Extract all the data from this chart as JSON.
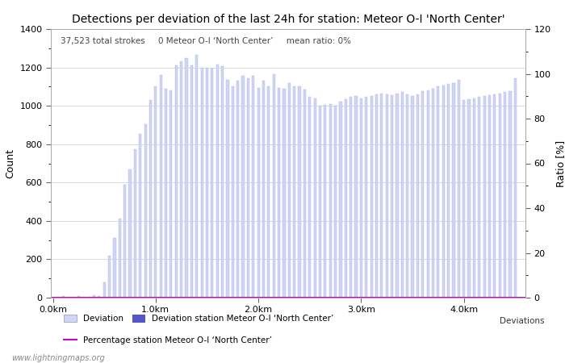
{
  "title": "Detections per deviation of the last 24h for station: Meteor O-I 'North Center'",
  "subtitle_parts": [
    "37,523 total strokes",
    "0 Meteor O-I ‘North Center’",
    "mean ratio: 0%"
  ],
  "ylabel_left": "Count",
  "ylabel_right": "Ratio [%]",
  "ylim_left": [
    0,
    1400
  ],
  "ylim_right": [
    0,
    120
  ],
  "bar_color_light": "#d0d4f5",
  "bar_color_dark": "#5555cc",
  "line_color": "#cc00cc",
  "watermark": "www.lightningmaps.org",
  "legend_suffix": "Deviations",
  "bar_positions": [
    0.05,
    0.1,
    0.15,
    0.2,
    0.25,
    0.3,
    0.35,
    0.4,
    0.45,
    0.5,
    0.55,
    0.6,
    0.65,
    0.7,
    0.75,
    0.8,
    0.85,
    0.9,
    0.95,
    1.0,
    1.05,
    1.1,
    1.15,
    1.2,
    1.25,
    1.3,
    1.35,
    1.4,
    1.45,
    1.5,
    1.55,
    1.6,
    1.65,
    1.7,
    1.75,
    1.8,
    1.85,
    1.9,
    1.95,
    2.0,
    2.05,
    2.1,
    2.15,
    2.2,
    2.25,
    2.3,
    2.35,
    2.4,
    2.45,
    2.5,
    2.55,
    2.6,
    2.65,
    2.7,
    2.75,
    2.8,
    2.85,
    2.9,
    2.95,
    3.0,
    3.05,
    3.1,
    3.15,
    3.2,
    3.25,
    3.3,
    3.35,
    3.4,
    3.45,
    3.5,
    3.55,
    3.6,
    3.65,
    3.7,
    3.75,
    3.8,
    3.85,
    3.9,
    3.95,
    4.0,
    4.05,
    4.1,
    4.15,
    4.2,
    4.25,
    4.3,
    4.35,
    4.4,
    4.45,
    4.5
  ],
  "bar_heights": [
    5,
    8,
    3,
    5,
    8,
    5,
    5,
    12,
    10,
    80,
    220,
    310,
    410,
    590,
    670,
    775,
    855,
    905,
    1030,
    1100,
    1160,
    1090,
    1080,
    1210,
    1230,
    1250,
    1210,
    1265,
    1200,
    1200,
    1195,
    1215,
    1205,
    1135,
    1100,
    1130,
    1155,
    1145,
    1155,
    1095,
    1130,
    1100,
    1165,
    1095,
    1090,
    1120,
    1100,
    1100,
    1085,
    1045,
    1040,
    1000,
    1005,
    1010,
    1000,
    1020,
    1035,
    1045,
    1050,
    1040,
    1045,
    1050,
    1060,
    1065,
    1060,
    1055,
    1065,
    1070,
    1060,
    1050,
    1060,
    1075,
    1080,
    1090,
    1100,
    1105,
    1115,
    1120,
    1135,
    1030,
    1035,
    1040,
    1045,
    1050,
    1055,
    1060,
    1065,
    1070,
    1075,
    1145
  ],
  "bar_width": 0.025,
  "xlim": [
    -0.02,
    4.6
  ],
  "xtick_positions": [
    0.0,
    1.0,
    2.0,
    3.0,
    4.0
  ],
  "xlabel_ticks": [
    "0.0km",
    "1.0km",
    "2.0km",
    "3.0km",
    "4.0km"
  ],
  "yticks_left": [
    0,
    200,
    400,
    600,
    800,
    1000,
    1200,
    1400
  ],
  "yticks_right": [
    0,
    20,
    40,
    60,
    80,
    100,
    120
  ],
  "grid_color": "#cccccc",
  "spine_color": "#aaaaaa",
  "figsize": [
    7.0,
    4.5
  ],
  "dpi": 100
}
